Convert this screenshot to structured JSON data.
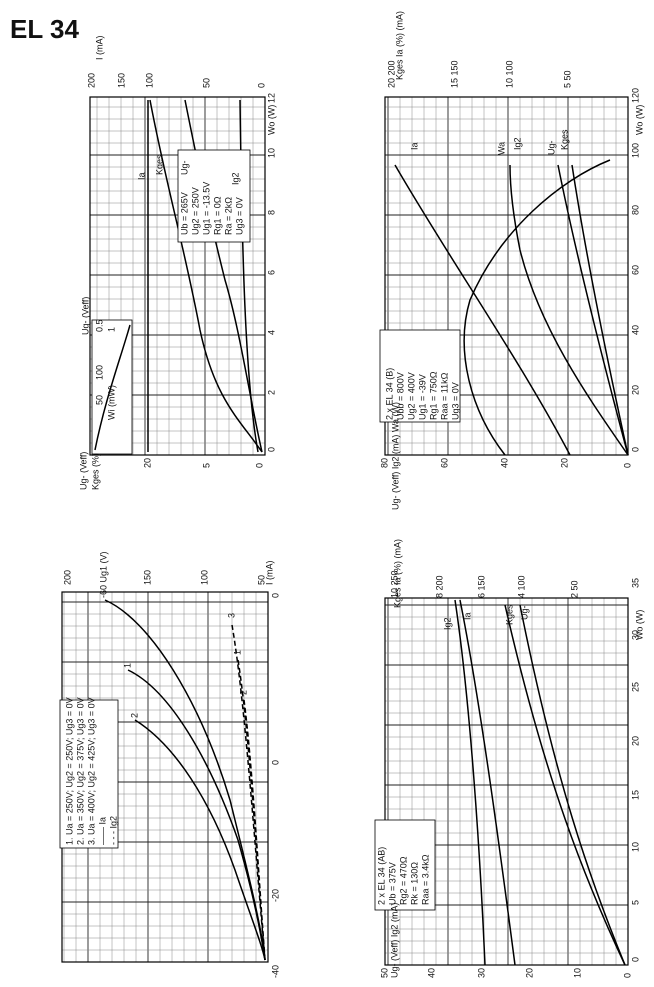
{
  "header": {
    "title": "EL 34"
  },
  "panels": [
    {
      "legend": [
        "Ub = 265V",
        "Ug2 = 250V",
        "Ug1 = -13.5V",
        "Rg1 = 0Ω",
        "Ra = 2kΩ",
        "Ug3 = 0V"
      ],
      "labels": [
        "Wo (W)",
        "0",
        "2",
        "4",
        "6",
        "8",
        "10",
        "12",
        "I (mA)",
        "200",
        "150",
        "100",
        "50",
        "0",
        "Ug- (Veff)",
        "Kges (%)",
        "20",
        "5",
        "0",
        "Ia",
        "Kges",
        "Ug-",
        "Ig2",
        "Ug- (Veff)",
        "0.5",
        "1",
        "50",
        "100",
        "Wi (mW)"
      ]
    },
    {
      "legend": [
        "2 x EL 34 (B)",
        "Ubb = 800V",
        "Ug2 = 400V",
        "Ug1 = -39V",
        "Rg1 = 750Ω",
        "Raa = 11kΩ",
        "Ug3 = 0V"
      ],
      "labels": [
        "Wo (W)",
        "0",
        "20",
        "40",
        "60",
        "80",
        "100",
        "120",
        "Kges Ia (%) (mA)",
        "20 200",
        "15 150",
        "10 100",
        "5 50",
        "Ug- (Veff) Ig2 (mA) Wa (W)",
        "80",
        "60",
        "40",
        "20",
        "0",
        "Ia",
        "Wa",
        "Ig2",
        "Ug-",
        "Kges"
      ]
    },
    {
      "legend": [
        "1. Ua = 250V; Ug2 = 250V; Ug3 = 0V",
        "2. Ua = 350V; Ug2 = 375V; Ug3 = 0V",
        "3. Ua = 400V; Ug2 = 425V; Ug3 = 0V",
        "—— Ia",
        "- - - Ig2"
      ],
      "labels": [
        "I (mA)",
        "200",
        "150",
        "100",
        "50",
        "0",
        "0",
        "-20",
        "-40",
        "-60 Ug1 (V)",
        "1",
        "2",
        "3",
        "1",
        "2",
        "3"
      ]
    },
    {
      "legend": [
        "2 x EL 34 (AB)",
        "Ub = 375V",
        "Rg2 = 470Ω",
        "Rk = 130Ω",
        "Raa = 3.4kΩ"
      ],
      "labels": [
        "Wo (W)",
        "0",
        "5",
        "10",
        "15",
        "20",
        "25",
        "30",
        "35",
        "Kges Ia (%) (mA)",
        "10 250",
        "8 200",
        "6 150",
        "4 100",
        "2 50",
        "Ug- (Veff) Ig2 (mA)",
        "50",
        "40",
        "30",
        "20",
        "10",
        "0",
        "Ig2",
        "Ia",
        "Kges",
        "Ug-"
      ]
    }
  ]
}
